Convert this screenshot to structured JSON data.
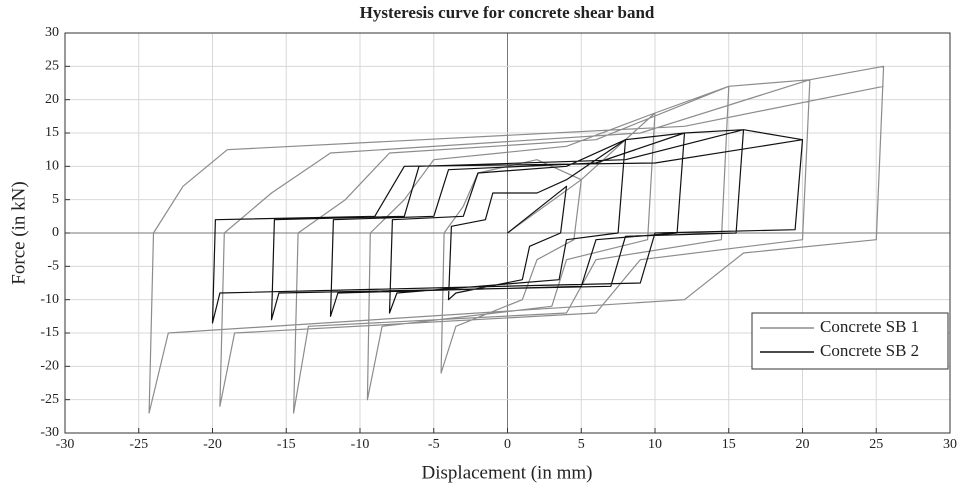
{
  "chart_data": {
    "type": "line",
    "title": "Hysteresis curve for concrete shear band",
    "x_label": "Displacement (in mm)",
    "y_label": "Force (in kN)",
    "xlim": [
      -30,
      30
    ],
    "ylim": [
      -30,
      30
    ],
    "xticks": [
      -30,
      -25,
      -20,
      -15,
      -10,
      -5,
      0,
      5,
      10,
      15,
      20,
      25,
      30
    ],
    "yticks": [
      -30,
      -25,
      -20,
      -15,
      -10,
      -5,
      0,
      5,
      10,
      15,
      20,
      25,
      30
    ],
    "grid": true,
    "legend": "lower right",
    "series": [
      {
        "name": "Concrete SB 1",
        "color": "#8c8c8c",
        "x": [
          0,
          5,
          4.5,
          2,
          1,
          -3.5,
          -4.5,
          -4.3,
          -3,
          -2,
          2,
          5,
          10,
          9.5,
          4,
          3,
          -8.5,
          -9.5,
          -9.3,
          -7,
          -5,
          4,
          10,
          15,
          14.5,
          6,
          4,
          -13.5,
          -14.5,
          -14.2,
          -11,
          -8,
          6,
          15,
          20.5,
          20,
          9,
          6,
          -18.5,
          -19.5,
          -19.2,
          -16,
          -12,
          9,
          20.5,
          25.5,
          25,
          16,
          12,
          -23,
          -24.3,
          -24,
          -22,
          -19,
          12,
          25.5
        ],
        "values": [
          0,
          8,
          -1,
          -4,
          -10,
          -14,
          -21,
          0,
          4,
          9,
          11,
          8,
          18,
          -1,
          -4,
          -11,
          -14,
          -25,
          0,
          5,
          11,
          13,
          18,
          22,
          -1,
          -4,
          -12,
          -14,
          -27,
          0,
          5,
          12,
          14,
          22,
          23,
          -1,
          -4,
          -12,
          -15,
          -26,
          0,
          6,
          12,
          15,
          23,
          25,
          -1,
          -3,
          -10,
          -15,
          -27,
          0,
          7,
          12.5,
          16,
          22
        ]
      },
      {
        "name": "Concrete SB 2",
        "color": "#111111",
        "x": [
          0,
          4,
          3.6,
          1.5,
          1,
          -3.5,
          -4,
          -3.8,
          -1.5,
          -1,
          2,
          4,
          8,
          7.5,
          4,
          3.5,
          -7.5,
          -8,
          -7.8,
          -3,
          -2,
          4,
          8,
          12,
          11.5,
          6,
          5,
          -11.5,
          -12,
          -11.8,
          -5,
          -4,
          6,
          12,
          16,
          15.5,
          8,
          7,
          -15.5,
          -16,
          -15.8,
          -7,
          -6,
          8,
          16,
          20,
          19.5,
          10,
          9,
          -19.5,
          -20,
          -19.8,
          -9,
          -7,
          10,
          20
        ],
        "values": [
          0,
          7,
          0,
          -2,
          -7,
          -9,
          -10,
          1,
          2,
          6,
          6,
          8,
          14,
          0,
          -1,
          -7,
          -9,
          -12,
          2,
          2.5,
          9,
          10,
          14,
          15,
          0,
          -1,
          -8,
          -9,
          -12.5,
          2,
          2.5,
          9.5,
          10.5,
          15,
          15.5,
          0,
          -0.5,
          -8,
          -9,
          -13,
          2,
          2.5,
          10,
          11,
          15.5,
          14,
          0.5,
          0,
          -7.5,
          -9,
          -13.5,
          2,
          2.5,
          10,
          10.5,
          14
        ]
      }
    ]
  }
}
